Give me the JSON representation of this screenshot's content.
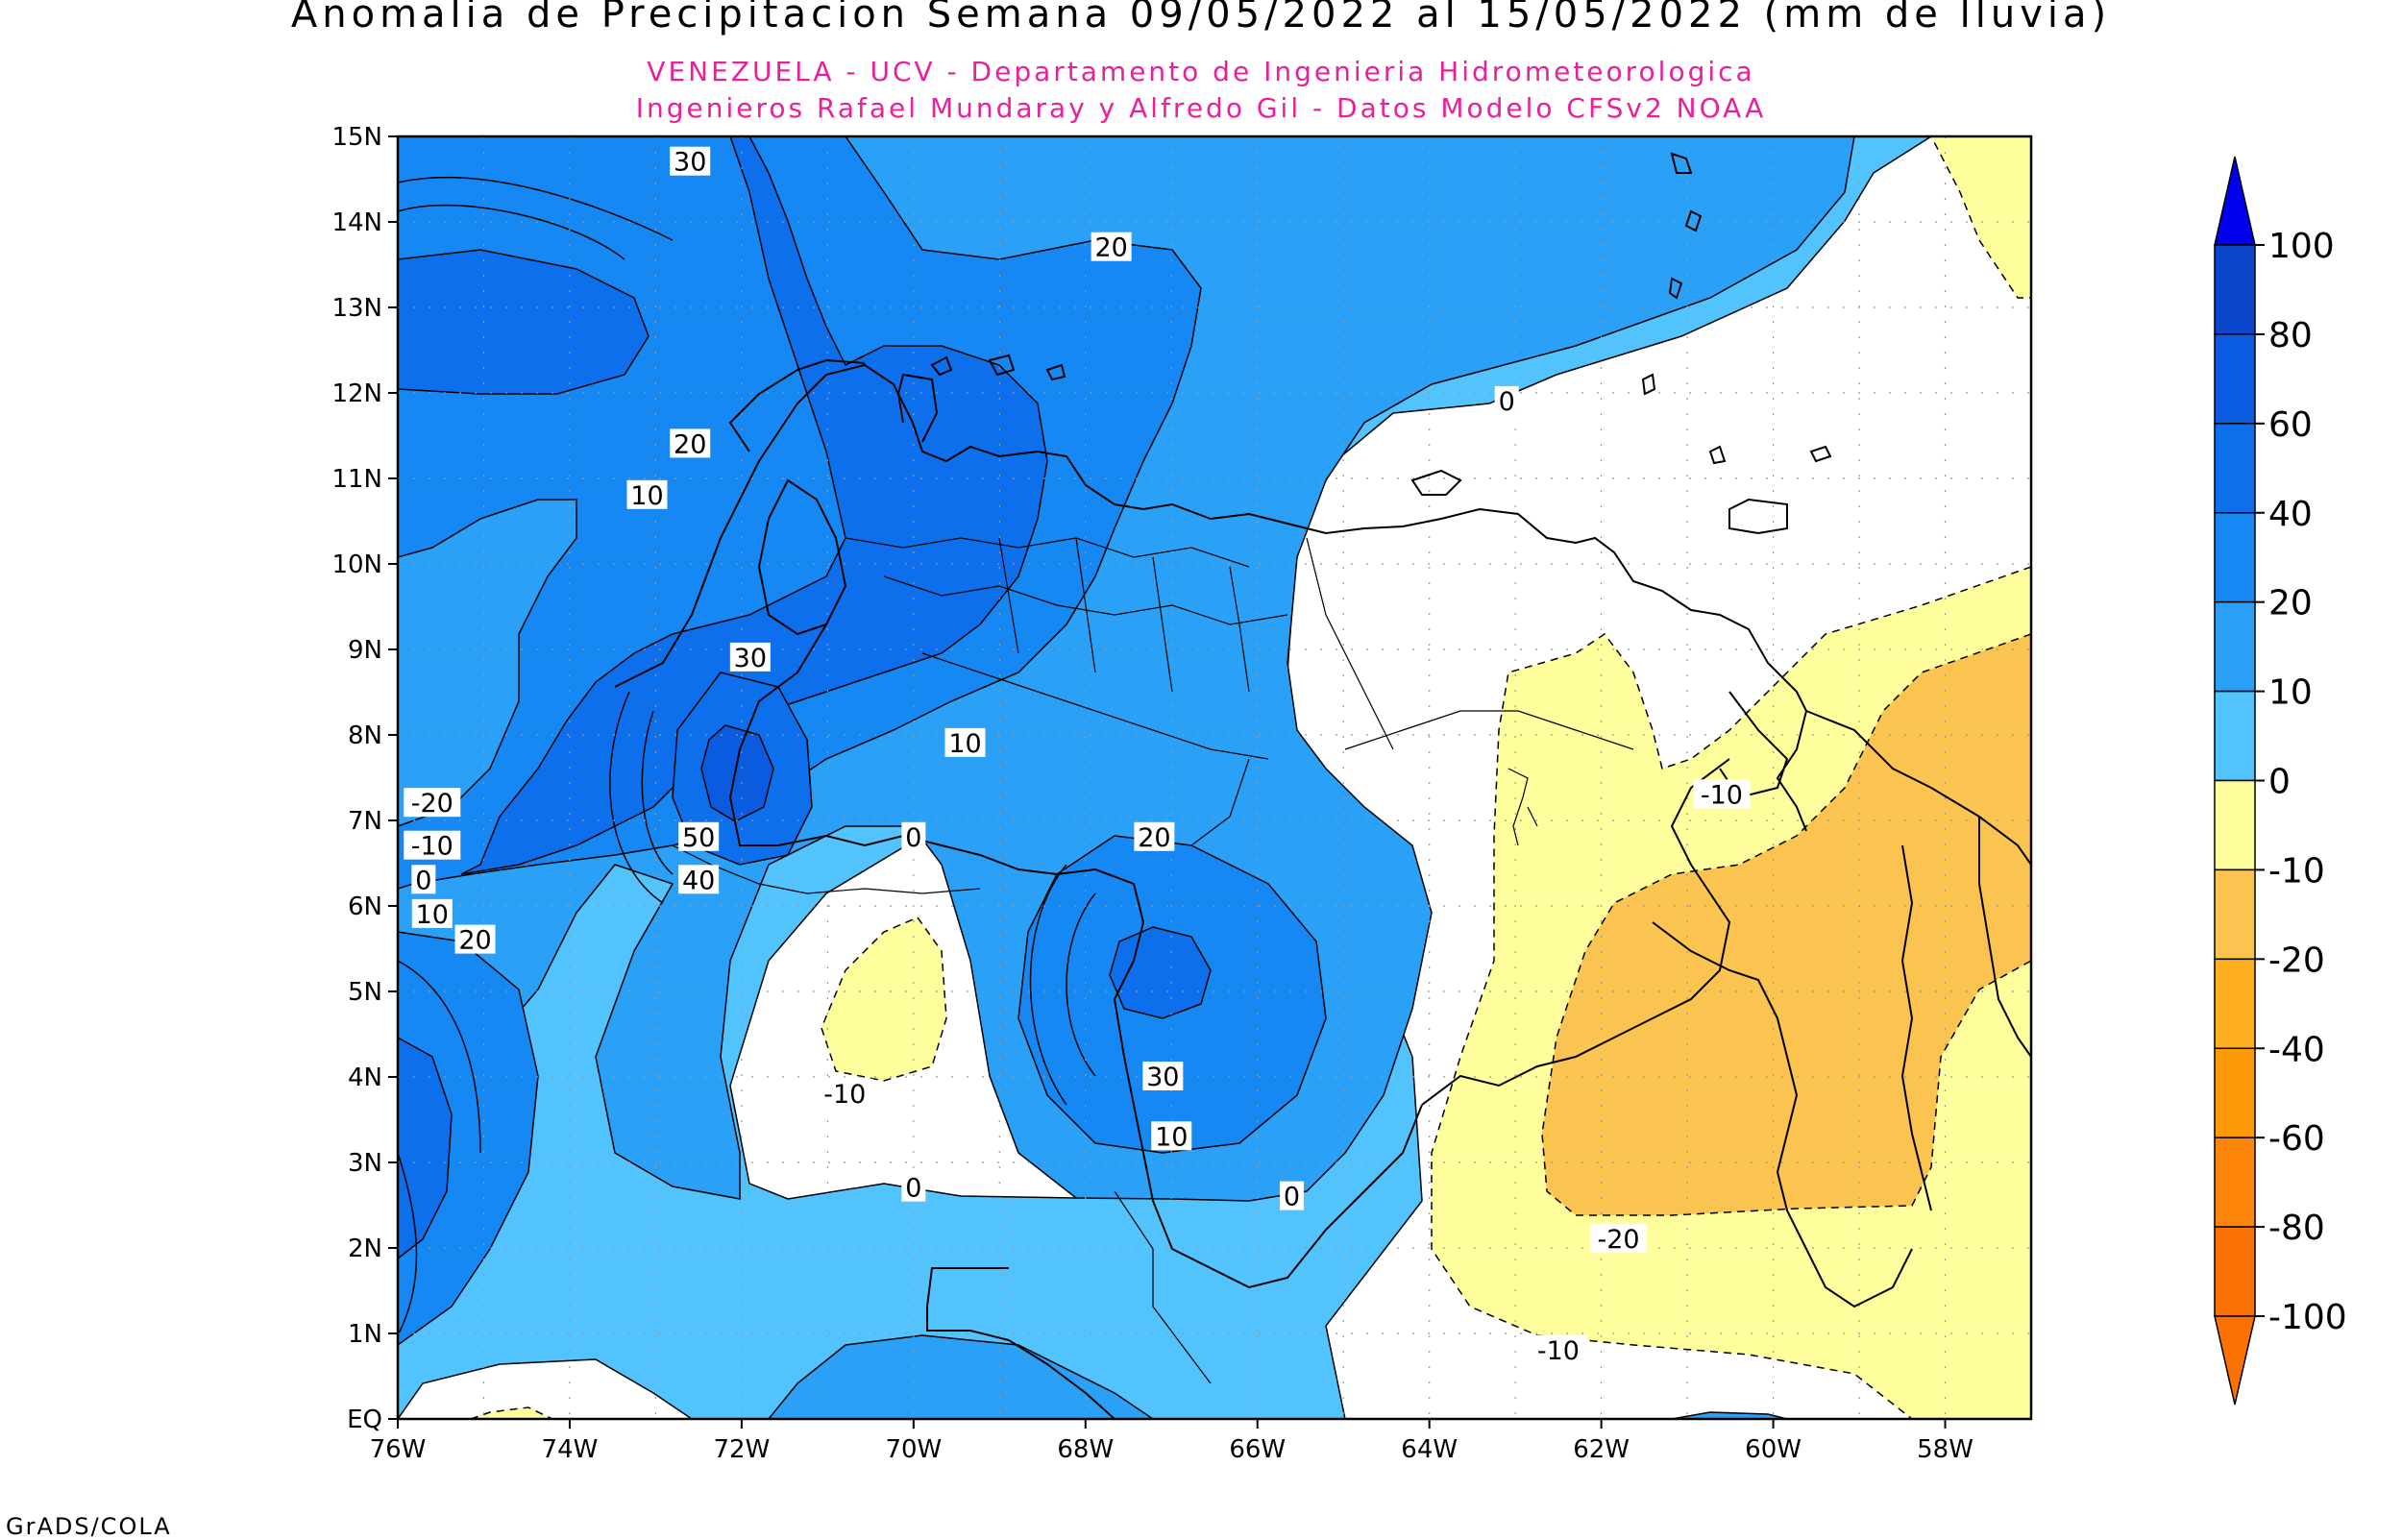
{
  "title": "Anomalia de Precipitacion Semana 09/05/2022 al 15/05/2022 (mm de lluvia)",
  "subtitle1": "VENEZUELA - UCV - Departamento de Ingenieria Hidrometeorologica",
  "subtitle2": "Ingenieros Rafael Mundaray y Alfredo Gil - Datos Modelo CFSv2 NOAA",
  "credit": "GrADS/COLA",
  "axes": {
    "lat_ticks": [
      "15N",
      "14N",
      "13N",
      "12N",
      "11N",
      "10N",
      "9N",
      "8N",
      "7N",
      "6N",
      "5N",
      "4N",
      "3N",
      "2N",
      "1N",
      "EQ"
    ],
    "lon_ticks": [
      "76W",
      "74W",
      "72W",
      "70W",
      "68W",
      "66W",
      "64W",
      "62W",
      "60W",
      "58W"
    ],
    "lon_range": [
      -76,
      -57
    ],
    "lat_range": [
      0,
      15
    ]
  },
  "colorbar": {
    "labels": [
      "100",
      "80",
      "60",
      "40",
      "20",
      "10",
      "0",
      "-10",
      "-20",
      "-40",
      "-60",
      "-80",
      "-100"
    ],
    "colors": [
      "#0a46cc",
      "#0a5bdf",
      "#0d6fec",
      "#1688f3",
      "#2aa1f7",
      "#52c3fc",
      "#ffffff",
      "#fefe9c",
      "#fbc450",
      "#fdae1f",
      "#fd9a0a",
      "#fd860a",
      "#fb7203"
    ]
  },
  "contour_labels": [
    {
      "text": "30",
      "lon": -72.6,
      "lat": 14.7
    },
    {
      "text": "20",
      "lon": -67.7,
      "lat": 13.7
    },
    {
      "text": "0",
      "lon": -63.1,
      "lat": 11.9
    },
    {
      "text": "20",
      "lon": -72.6,
      "lat": 11.4
    },
    {
      "text": "10",
      "lon": -73.1,
      "lat": 10.8
    },
    {
      "text": "30",
      "lon": -71.9,
      "lat": 8.9
    },
    {
      "text": "10",
      "lon": -69.4,
      "lat": 7.9
    },
    {
      "text": "-20",
      "lon": -75.6,
      "lat": 7.2
    },
    {
      "text": "-10",
      "lon": -75.6,
      "lat": 6.7
    },
    {
      "text": "0",
      "lon": -75.7,
      "lat": 6.3
    },
    {
      "text": "10",
      "lon": -75.6,
      "lat": 5.9
    },
    {
      "text": "20",
      "lon": -75.1,
      "lat": 5.6
    },
    {
      "text": "50",
      "lon": -72.5,
      "lat": 6.8
    },
    {
      "text": "40",
      "lon": -72.5,
      "lat": 6.3
    },
    {
      "text": "0",
      "lon": -70.0,
      "lat": 6.8
    },
    {
      "text": "20",
      "lon": -67.2,
      "lat": 6.8
    },
    {
      "text": "30",
      "lon": -67.1,
      "lat": 4.0
    },
    {
      "text": "10",
      "lon": -67.0,
      "lat": 3.3
    },
    {
      "text": "-10",
      "lon": -70.8,
      "lat": 3.8
    },
    {
      "text": "0",
      "lon": -70.0,
      "lat": 2.7
    },
    {
      "text": "0",
      "lon": -65.6,
      "lat": 2.6
    },
    {
      "text": "-10",
      "lon": -60.6,
      "lat": 7.3
    },
    {
      "text": "-20",
      "lon": -61.8,
      "lat": 2.1
    },
    {
      "text": "-10",
      "lon": -62.5,
      "lat": 0.8
    }
  ]
}
